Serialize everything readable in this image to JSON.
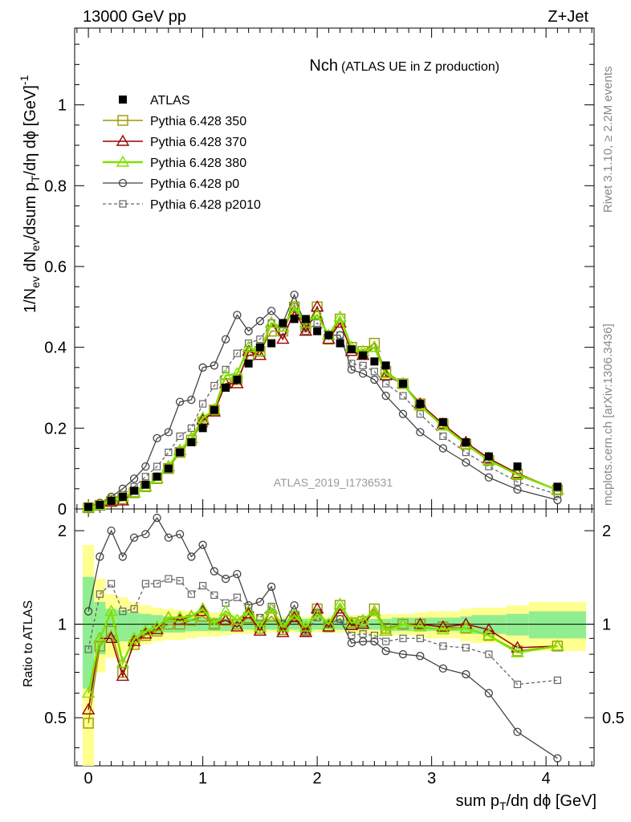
{
  "header": {
    "energy_label": "13000 GeV pp",
    "process_label": "Z+Jet",
    "title_main": "Nch",
    "title_sub": "(ATLAS UE in Z production)",
    "analysis_label": "ATLAS_2019_I1736531",
    "side_label_top": "Rivet 3.1.10, ≥ 2.2M events",
    "side_label_bottom": "mcplots.cern.ch [arXiv:1306.3436]"
  },
  "axes": {
    "x_label": "sum p_T/dη dϕ [GeV]",
    "x_ticks": [
      "0",
      "1",
      "2",
      "3",
      "4"
    ],
    "y_label_main": "1/N_ev dN_ev/dsum p_T/dη dϕ [GeV]^-1",
    "y_ticks_main": [
      "0",
      "0.2",
      "0.4",
      "0.6",
      "0.8",
      "1"
    ],
    "y_label_ratio": "Ratio to ATLAS",
    "y_ticks_ratio": [
      "0.5",
      "1",
      "2"
    ]
  },
  "colors": {
    "atlas": "#000000",
    "p350": "#999900",
    "p370": "#990000",
    "p380": "#80e000",
    "p0": "#444444",
    "p2010": "#666666",
    "band_inner": "#90ee90",
    "band_outer": "#ffff90"
  },
  "chart_data": [
    {
      "type": "scatter",
      "panel": "main",
      "xlim": [
        -0.12,
        4.42
      ],
      "ylim": [
        0,
        1.19
      ],
      "x": [
        0.0,
        0.1,
        0.2,
        0.3,
        0.4,
        0.5,
        0.6,
        0.7,
        0.8,
        0.9,
        1.0,
        1.1,
        1.2,
        1.3,
        1.4,
        1.5,
        1.6,
        1.7,
        1.8,
        1.9,
        2.0,
        2.1,
        2.2,
        2.3,
        2.4,
        2.5,
        2.6,
        2.75,
        2.9,
        3.1,
        3.3,
        3.5,
        3.75,
        4.1
      ],
      "series": [
        {
          "name": "ATLAS",
          "values": [
            0.005,
            0.01,
            0.02,
            0.03,
            0.045,
            0.06,
            0.08,
            0.1,
            0.14,
            0.165,
            0.2,
            0.245,
            0.3,
            0.32,
            0.36,
            0.4,
            0.41,
            0.46,
            0.47,
            0.47,
            0.44,
            0.43,
            0.41,
            0.395,
            0.38,
            0.365,
            0.355,
            0.31,
            0.26,
            0.215,
            0.165,
            0.13,
            0.105,
            0.055
          ]
        },
        {
          "name": "Pythia 6.428 350",
          "values": [
            0.003,
            0.009,
            0.018,
            0.025,
            0.04,
            0.055,
            0.075,
            0.1,
            0.14,
            0.17,
            0.215,
            0.245,
            0.31,
            0.32,
            0.38,
            0.39,
            0.44,
            0.44,
            0.5,
            0.45,
            0.5,
            0.42,
            0.47,
            0.4,
            0.39,
            0.41,
            0.34,
            0.31,
            0.26,
            0.21,
            0.16,
            0.12,
            0.085,
            0.047
          ]
        },
        {
          "name": "Pythia 6.428 370",
          "values": [
            0.003,
            0.009,
            0.018,
            0.02,
            0.04,
            0.055,
            0.075,
            0.105,
            0.145,
            0.175,
            0.22,
            0.24,
            0.31,
            0.31,
            0.39,
            0.38,
            0.46,
            0.42,
            0.49,
            0.44,
            0.5,
            0.42,
            0.46,
            0.39,
            0.38,
            0.4,
            0.33,
            0.31,
            0.26,
            0.21,
            0.165,
            0.125,
            0.088,
            0.047
          ]
        },
        {
          "name": "Pythia 6.428 380",
          "values": [
            0.003,
            0.009,
            0.022,
            0.03,
            0.04,
            0.055,
            0.075,
            0.105,
            0.145,
            0.175,
            0.225,
            0.245,
            0.33,
            0.335,
            0.4,
            0.39,
            0.46,
            0.45,
            0.5,
            0.46,
            0.48,
            0.43,
            0.475,
            0.4,
            0.39,
            0.4,
            0.335,
            0.31,
            0.255,
            0.205,
            0.16,
            0.12,
            0.085,
            0.047
          ]
        },
        {
          "name": "Pythia 6.428 p0",
          "values": [
            0.005,
            0.015,
            0.03,
            0.05,
            0.075,
            0.105,
            0.175,
            0.19,
            0.265,
            0.27,
            0.35,
            0.355,
            0.42,
            0.48,
            0.44,
            0.465,
            0.49,
            0.46,
            0.53,
            0.45,
            0.48,
            0.43,
            0.43,
            0.345,
            0.335,
            0.32,
            0.28,
            0.235,
            0.19,
            0.15,
            0.115,
            0.078,
            0.048,
            0.022
          ]
        },
        {
          "name": "Pythia 6.428 p2010",
          "values": [
            0.004,
            0.012,
            0.025,
            0.035,
            0.055,
            0.08,
            0.105,
            0.14,
            0.18,
            0.2,
            0.26,
            0.305,
            0.345,
            0.385,
            0.41,
            0.42,
            0.46,
            0.44,
            0.5,
            0.44,
            0.46,
            0.43,
            0.43,
            0.36,
            0.355,
            0.34,
            0.31,
            0.28,
            0.235,
            0.18,
            0.14,
            0.105,
            0.067,
            0.036
          ]
        }
      ]
    },
    {
      "type": "line",
      "panel": "ratio",
      "log_scale": true,
      "xlim": [
        -0.12,
        4.42
      ],
      "ylim": [
        0.35,
        2.35
      ],
      "reference_line": 1,
      "x": [
        0.0,
        0.1,
        0.2,
        0.3,
        0.4,
        0.5,
        0.6,
        0.7,
        0.8,
        0.9,
        1.0,
        1.1,
        1.2,
        1.3,
        1.4,
        1.5,
        1.6,
        1.7,
        1.8,
        1.9,
        2.0,
        2.1,
        2.2,
        2.3,
        2.4,
        2.5,
        2.6,
        2.75,
        2.9,
        3.1,
        3.3,
        3.5,
        3.75,
        4.1
      ],
      "series": [
        {
          "name": "Pythia 6.428 350",
          "values": [
            0.48,
            0.85,
            0.95,
            0.7,
            0.86,
            0.92,
            0.95,
            1.0,
            1.0,
            1.03,
            1.06,
            1.0,
            1.03,
            1.0,
            1.05,
            0.97,
            1.06,
            0.96,
            1.06,
            0.96,
            1.12,
            0.98,
            1.15,
            1.01,
            1.02,
            1.12,
            0.97,
            1.0,
            1.0,
            0.98,
            0.97,
            0.92,
            0.82,
            0.85
          ]
        },
        {
          "name": "Pythia 6.428 370",
          "values": [
            0.53,
            0.9,
            0.9,
            0.68,
            0.88,
            0.93,
            0.96,
            1.05,
            1.03,
            1.06,
            1.1,
            1.0,
            1.03,
            0.98,
            1.08,
            0.95,
            1.12,
            0.94,
            1.05,
            0.94,
            1.12,
            0.98,
            1.12,
            0.99,
            1.0,
            1.1,
            0.95,
            1.0,
            1.0,
            0.98,
            1.0,
            0.96,
            0.84,
            0.85
          ]
        },
        {
          "name": "Pythia 6.428 380",
          "values": [
            0.6,
            0.9,
            1.1,
            0.75,
            0.9,
            0.95,
            0.98,
            1.05,
            1.05,
            1.06,
            1.12,
            1.0,
            1.1,
            1.03,
            1.1,
            0.98,
            1.12,
            0.98,
            1.07,
            0.98,
            1.08,
            1.0,
            1.16,
            1.01,
            1.03,
            1.1,
            0.95,
            1.0,
            0.98,
            0.96,
            0.97,
            0.92,
            0.81,
            0.85
          ]
        },
        {
          "name": "Pythia 6.428 p0",
          "values": [
            1.1,
            1.65,
            2.0,
            1.65,
            1.9,
            1.95,
            2.2,
            1.9,
            1.95,
            1.65,
            1.8,
            1.48,
            1.4,
            1.45,
            1.15,
            1.18,
            1.32,
            1.0,
            1.15,
            0.96,
            1.09,
            1.0,
            1.04,
            0.87,
            0.88,
            0.88,
            0.82,
            0.8,
            0.79,
            0.72,
            0.69,
            0.6,
            0.45,
            0.37
          ]
        },
        {
          "name": "Pythia 6.428 p2010",
          "values": [
            0.83,
            1.25,
            1.35,
            1.1,
            1.12,
            1.35,
            1.35,
            1.4,
            1.38,
            1.25,
            1.33,
            1.24,
            1.17,
            1.22,
            1.13,
            1.05,
            1.14,
            0.95,
            1.06,
            0.94,
            1.05,
            1.0,
            1.04,
            0.92,
            0.93,
            0.92,
            0.88,
            0.9,
            0.9,
            0.85,
            0.84,
            0.8,
            0.64,
            0.66
          ]
        }
      ],
      "band_edges": [
        -0.05,
        0.05,
        0.15,
        0.25,
        0.35,
        0.45,
        0.55,
        0.65,
        0.75,
        0.85,
        0.95,
        1.05,
        1.15,
        1.25,
        1.35,
        1.45,
        1.55,
        1.65,
        1.75,
        1.85,
        1.95,
        2.05,
        2.15,
        2.25,
        2.35,
        2.45,
        2.55,
        2.65,
        2.85,
        2.95,
        3.25,
        3.35,
        3.65,
        3.85,
        4.35
      ],
      "band_inner": [
        0.62,
        0.8,
        0.88,
        0.88,
        0.9,
        0.92,
        0.93,
        0.94,
        0.94,
        0.95,
        0.95,
        0.95,
        0.95,
        0.96,
        0.96,
        0.96,
        0.96,
        0.96,
        0.96,
        0.96,
        0.96,
        0.96,
        0.96,
        0.96,
        0.96,
        0.96,
        0.96,
        0.95,
        0.95,
        0.95,
        0.94,
        0.93,
        0.92,
        0.9
      ],
      "band_outer": [
        0.35,
        0.7,
        0.78,
        0.8,
        0.83,
        0.86,
        0.88,
        0.89,
        0.89,
        0.9,
        0.91,
        0.91,
        0.92,
        0.93,
        0.93,
        0.93,
        0.94,
        0.94,
        0.94,
        0.94,
        0.94,
        0.94,
        0.94,
        0.93,
        0.93,
        0.92,
        0.92,
        0.92,
        0.91,
        0.9,
        0.88,
        0.87,
        0.85,
        0.82
      ],
      "band_inner_hi": [
        1.42,
        1.18,
        1.12,
        1.11,
        1.09,
        1.08,
        1.07,
        1.06,
        1.06,
        1.05,
        1.05,
        1.05,
        1.05,
        1.04,
        1.04,
        1.04,
        1.04,
        1.04,
        1.04,
        1.04,
        1.04,
        1.04,
        1.04,
        1.04,
        1.04,
        1.04,
        1.04,
        1.05,
        1.05,
        1.05,
        1.06,
        1.07,
        1.08,
        1.1
      ],
      "band_outer_hi": [
        1.8,
        1.4,
        1.25,
        1.22,
        1.18,
        1.15,
        1.13,
        1.12,
        1.11,
        1.1,
        1.09,
        1.09,
        1.08,
        1.07,
        1.07,
        1.07,
        1.06,
        1.06,
        1.06,
        1.06,
        1.06,
        1.06,
        1.06,
        1.07,
        1.07,
        1.08,
        1.08,
        1.08,
        1.09,
        1.1,
        1.12,
        1.13,
        1.15,
        1.18
      ]
    }
  ]
}
